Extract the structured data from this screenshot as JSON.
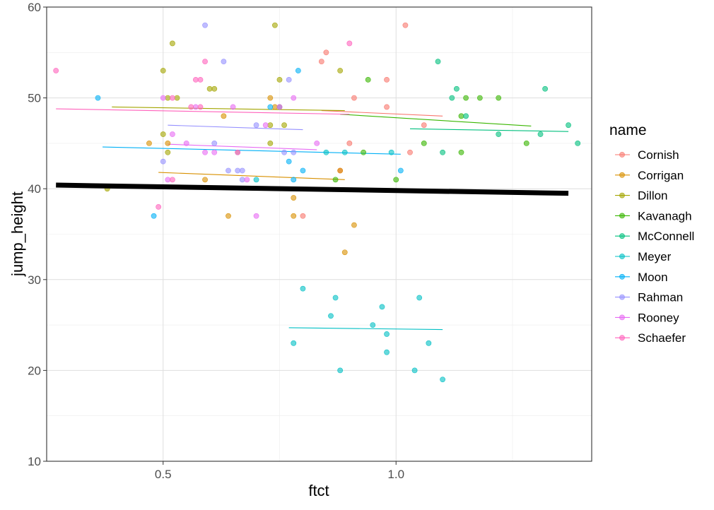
{
  "chart_data": {
    "type": "scatter",
    "title": "",
    "xlabel": "ftct",
    "ylabel": "jump_height",
    "xlim": [
      0.25,
      1.42
    ],
    "ylim": [
      10,
      60
    ],
    "x_ticks": [
      0.5,
      1.0
    ],
    "x_tick_labels": [
      "0.5",
      "1.0"
    ],
    "y_ticks": [
      10,
      20,
      30,
      40,
      50,
      60
    ],
    "y_tick_labels": [
      "10",
      "20",
      "30",
      "40",
      "50",
      "60"
    ],
    "grid": true,
    "legend": {
      "title": "name",
      "position": "right"
    },
    "series": [
      {
        "name": "Cornish",
        "color": "#F8766D",
        "points": [
          [
            0.84,
            54
          ],
          [
            0.85,
            55
          ],
          [
            0.91,
            50
          ],
          [
            0.98,
            52
          ],
          [
            0.98,
            49
          ],
          [
            1.02,
            58
          ],
          [
            1.06,
            47
          ],
          [
            0.88,
            42
          ],
          [
            0.9,
            45
          ],
          [
            0.8,
            37
          ],
          [
            1.03,
            44
          ]
        ],
        "trend": [
          [
            0.84,
            48.6
          ],
          [
            1.1,
            48.0
          ]
        ]
      },
      {
        "name": "Corrigan",
        "color": "#D89000",
        "points": [
          [
            0.47,
            45
          ],
          [
            0.51,
            45
          ],
          [
            0.63,
            48
          ],
          [
            0.66,
            44
          ],
          [
            0.73,
            50
          ],
          [
            0.74,
            49
          ],
          [
            0.64,
            37
          ],
          [
            0.78,
            39
          ],
          [
            0.78,
            37
          ],
          [
            0.88,
            42
          ],
          [
            0.89,
            33
          ],
          [
            0.91,
            36
          ],
          [
            0.59,
            41
          ]
        ],
        "trend": [
          [
            0.49,
            41.8
          ],
          [
            0.89,
            41.0
          ]
        ]
      },
      {
        "name": "Dillon",
        "color": "#A3A500",
        "points": [
          [
            0.5,
            53
          ],
          [
            0.52,
            56
          ],
          [
            0.51,
            50
          ],
          [
            0.53,
            50
          ],
          [
            0.6,
            51
          ],
          [
            0.61,
            51
          ],
          [
            0.74,
            58
          ],
          [
            0.75,
            52
          ],
          [
            0.73,
            47
          ],
          [
            0.76,
            47
          ],
          [
            0.88,
            53
          ],
          [
            0.5,
            46
          ],
          [
            0.51,
            44
          ],
          [
            0.73,
            45
          ],
          [
            0.38,
            40
          ]
        ],
        "trend": [
          [
            0.39,
            49.0
          ],
          [
            0.89,
            48.6
          ]
        ]
      },
      {
        "name": "Kavanagh",
        "color": "#39B600",
        "points": [
          [
            0.94,
            52
          ],
          [
            1.06,
            45
          ],
          [
            1.15,
            50
          ],
          [
            1.18,
            50
          ],
          [
            1.22,
            50
          ],
          [
            1.14,
            48
          ],
          [
            1.14,
            44
          ],
          [
            0.93,
            44
          ],
          [
            1.0,
            41
          ],
          [
            0.87,
            41
          ],
          [
            1.28,
            45
          ]
        ],
        "trend": [
          [
            0.88,
            48.2
          ],
          [
            1.29,
            46.9
          ]
        ]
      },
      {
        "name": "McConnell",
        "color": "#00BF7D",
        "points": [
          [
            1.09,
            54
          ],
          [
            1.13,
            51
          ],
          [
            1.12,
            50
          ],
          [
            1.15,
            48
          ],
          [
            1.22,
            46
          ],
          [
            1.32,
            51
          ],
          [
            1.31,
            46
          ],
          [
            1.37,
            47
          ],
          [
            1.39,
            45
          ],
          [
            1.1,
            44
          ]
        ],
        "trend": [
          [
            1.03,
            46.6
          ],
          [
            1.37,
            46.3
          ]
        ]
      },
      {
        "name": "Meyer",
        "color": "#00BFC4",
        "points": [
          [
            0.8,
            29
          ],
          [
            0.87,
            28
          ],
          [
            0.86,
            26
          ],
          [
            0.97,
            27
          ],
          [
            1.05,
            28
          ],
          [
            0.95,
            25
          ],
          [
            0.98,
            24
          ],
          [
            0.78,
            23
          ],
          [
            1.07,
            23
          ],
          [
            0.98,
            22
          ],
          [
            0.88,
            20
          ],
          [
            1.04,
            20
          ],
          [
            1.1,
            19
          ],
          [
            0.89,
            44
          ],
          [
            0.99,
            44
          ],
          [
            0.7,
            41
          ],
          [
            0.85,
            44
          ]
        ],
        "trend": [
          [
            0.77,
            24.7
          ],
          [
            1.1,
            24.5
          ]
        ]
      },
      {
        "name": "Moon",
        "color": "#00B0F6",
        "points": [
          [
            0.36,
            50
          ],
          [
            0.73,
            49
          ],
          [
            0.79,
            53
          ],
          [
            0.75,
            49
          ],
          [
            0.77,
            43
          ],
          [
            0.8,
            42
          ],
          [
            0.78,
            41
          ],
          [
            1.01,
            42
          ],
          [
            0.48,
            37
          ]
        ],
        "trend": [
          [
            0.37,
            44.6
          ],
          [
            1.01,
            43.8
          ]
        ]
      },
      {
        "name": "Rahman",
        "color": "#9590FF",
        "points": [
          [
            0.59,
            58
          ],
          [
            0.63,
            54
          ],
          [
            0.77,
            52
          ],
          [
            0.61,
            45
          ],
          [
            0.7,
            47
          ],
          [
            0.64,
            42
          ],
          [
            0.66,
            42
          ],
          [
            0.5,
            43
          ],
          [
            0.76,
            44
          ],
          [
            0.78,
            44
          ],
          [
            0.67,
            41
          ],
          [
            0.67,
            42
          ]
        ],
        "trend": [
          [
            0.51,
            47.0
          ],
          [
            0.8,
            46.5
          ]
        ]
      },
      {
        "name": "Rooney",
        "color": "#E76BF3",
        "points": [
          [
            0.5,
            50
          ],
          [
            0.57,
            49
          ],
          [
            0.59,
            44
          ],
          [
            0.61,
            44
          ],
          [
            0.55,
            45
          ],
          [
            0.66,
            44
          ],
          [
            0.68,
            41
          ],
          [
            0.65,
            49
          ],
          [
            0.78,
            50
          ],
          [
            0.51,
            41
          ],
          [
            0.52,
            46
          ],
          [
            0.83,
            45
          ],
          [
            0.7,
            37
          ],
          [
            0.72,
            47
          ]
        ],
        "trend": [
          [
            0.51,
            44.9
          ],
          [
            0.83,
            44.3
          ]
        ]
      },
      {
        "name": "Schaefer",
        "color": "#FF62BC",
        "points": [
          [
            0.27,
            53
          ],
          [
            0.59,
            54
          ],
          [
            0.57,
            52
          ],
          [
            0.58,
            52
          ],
          [
            0.52,
            50
          ],
          [
            0.56,
            49
          ],
          [
            0.58,
            49
          ],
          [
            0.9,
            56
          ],
          [
            0.75,
            49
          ],
          [
            0.52,
            41
          ],
          [
            0.49,
            38
          ]
        ],
        "trend": [
          [
            0.27,
            48.8
          ],
          [
            0.9,
            48.2
          ]
        ]
      }
    ],
    "overall_trend": [
      [
        0.27,
        40.4
      ],
      [
        1.37,
        39.5
      ]
    ]
  }
}
